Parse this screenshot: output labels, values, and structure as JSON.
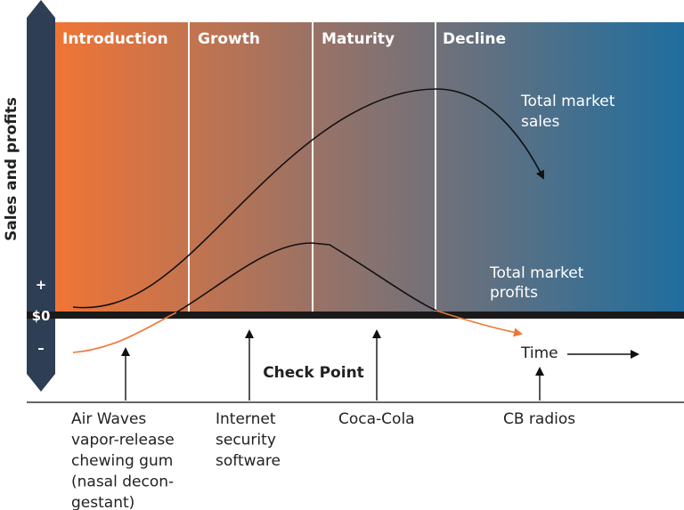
{
  "axis_label": "Sales and profits",
  "stages": [
    "Introduction",
    "Growth",
    "Maturity",
    "Decline"
  ],
  "signs": {
    "plus": "+",
    "zero": "$0",
    "minus": "–"
  },
  "curves": {
    "sales": [
      "Total market",
      "sales"
    ],
    "profits": [
      "Total market",
      "profits"
    ]
  },
  "time_label": "Time",
  "check_point": "Check Point",
  "products": [
    {
      "lines": [
        "Air Waves",
        "vapor-release",
        "chewing gum",
        "(nasal decon-",
        "gestant)"
      ]
    },
    {
      "lines": [
        "Internet",
        "security",
        "software"
      ]
    },
    {
      "lines": [
        "Coca-Cola"
      ]
    },
    {
      "lines": [
        "CB radios"
      ]
    }
  ]
}
